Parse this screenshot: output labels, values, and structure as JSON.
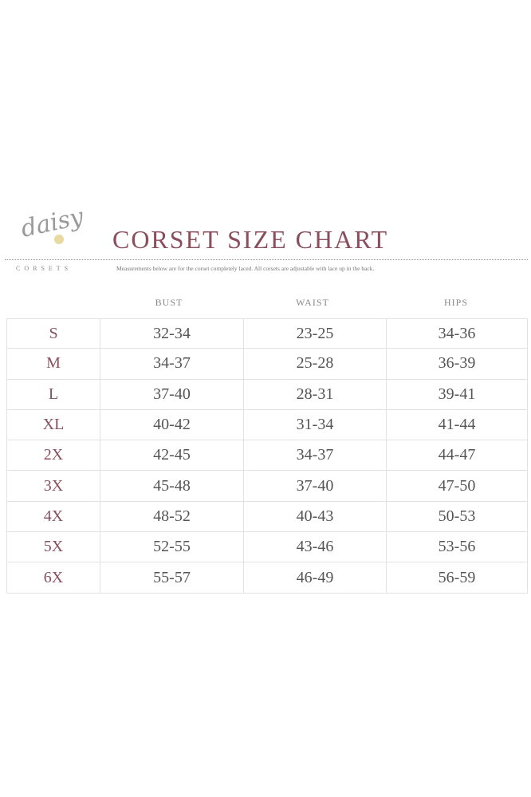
{
  "logo": {
    "script": "daisy",
    "sub": "CORSETS"
  },
  "title": "CORSET SIZE CHART",
  "subtitle": "Measurements below are for the corset completely laced. All corsets are adjustable with lace up in the back.",
  "columns": [
    "BUST",
    "WAIST",
    "HIPS"
  ],
  "rows": [
    {
      "size": "S",
      "bust": "32-34",
      "waist": "23-25",
      "hips": "34-36"
    },
    {
      "size": "M",
      "bust": "34-37",
      "waist": "25-28",
      "hips": "36-39"
    },
    {
      "size": "L",
      "bust": "37-40",
      "waist": "28-31",
      "hips": "39-41"
    },
    {
      "size": "XL",
      "bust": "40-42",
      "waist": "31-34",
      "hips": "41-44"
    },
    {
      "size": "2X",
      "bust": "42-45",
      "waist": "34-37",
      "hips": "44-47"
    },
    {
      "size": "3X",
      "bust": "45-48",
      "waist": "37-40",
      "hips": "47-50"
    },
    {
      "size": "4X",
      "bust": "48-52",
      "waist": "40-43",
      "hips": "50-53"
    },
    {
      "size": "5X",
      "bust": "52-55",
      "waist": "43-46",
      "hips": "53-56"
    },
    {
      "size": "6X",
      "bust": "55-57",
      "waist": "46-49",
      "hips": "56-59"
    }
  ]
}
